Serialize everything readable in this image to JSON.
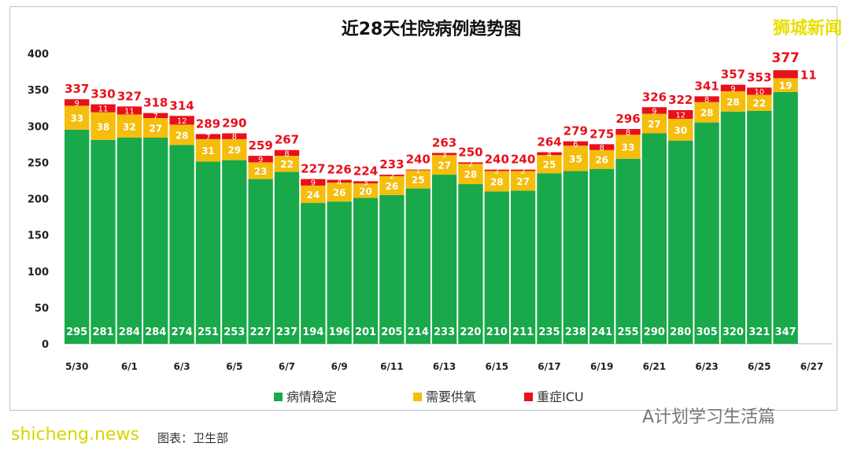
{
  "chart_data": {
    "type": "bar",
    "stacked": true,
    "title": "近28天住院病例趋势图",
    "categories": [
      "5/30",
      "5/31",
      "6/1",
      "6/2",
      "6/3",
      "6/4",
      "6/5",
      "6/6",
      "6/7",
      "6/8",
      "6/9",
      "6/10",
      "6/11",
      "6/12",
      "6/13",
      "6/14",
      "6/15",
      "6/16",
      "6/17",
      "6/18",
      "6/19",
      "6/20",
      "6/21",
      "6/22",
      "6/23",
      "6/24",
      "6/25",
      "6/26"
    ],
    "x_tick_labels": [
      "5/30",
      "6/1",
      "6/3",
      "6/5",
      "6/7",
      "6/9",
      "6/11",
      "6/13",
      "6/15",
      "6/17",
      "6/19",
      "6/21",
      "6/23",
      "6/25",
      "6/27"
    ],
    "y_ticks": [
      0,
      50,
      100,
      150,
      200,
      250,
      300,
      350,
      400
    ],
    "ylim": [
      0,
      400
    ],
    "grid": false,
    "legend_position": "bottom",
    "series": [
      {
        "name": "病情稳定",
        "color": "#19a84a",
        "values": [
          295,
          281,
          284,
          284,
          274,
          251,
          253,
          227,
          237,
          194,
          196,
          201,
          205,
          214,
          233,
          220,
          210,
          211,
          235,
          238,
          241,
          255,
          290,
          280,
          305,
          320,
          321,
          347
        ]
      },
      {
        "name": "需要供氧",
        "color": "#f5bd0c",
        "values": [
          33,
          38,
          32,
          27,
          28,
          31,
          29,
          23,
          22,
          24,
          26,
          20,
          26,
          25,
          27,
          28,
          28,
          27,
          25,
          35,
          26,
          33,
          27,
          30,
          28,
          28,
          22,
          19
        ]
      },
      {
        "name": "重症ICU",
        "color": "#e8101a",
        "values": [
          9,
          11,
          11,
          7,
          12,
          7,
          8,
          9,
          8,
          9,
          4,
          3,
          2,
          1,
          3,
          2,
          2,
          2,
          4,
          6,
          8,
          8,
          9,
          12,
          8,
          9,
          10,
          11
        ]
      }
    ],
    "totals": [
      337,
      330,
      327,
      318,
      314,
      289,
      290,
      259,
      267,
      227,
      226,
      224,
      233,
      240,
      263,
      250,
      240,
      240,
      264,
      279,
      275,
      296,
      326,
      322,
      341,
      357,
      353,
      377
    ]
  },
  "watermarks": {
    "top_right": "狮城新闻",
    "bottom_right": "A计划学习生活篇",
    "bottom_left": "shicheng.news",
    "source": "图表：卫生部"
  }
}
